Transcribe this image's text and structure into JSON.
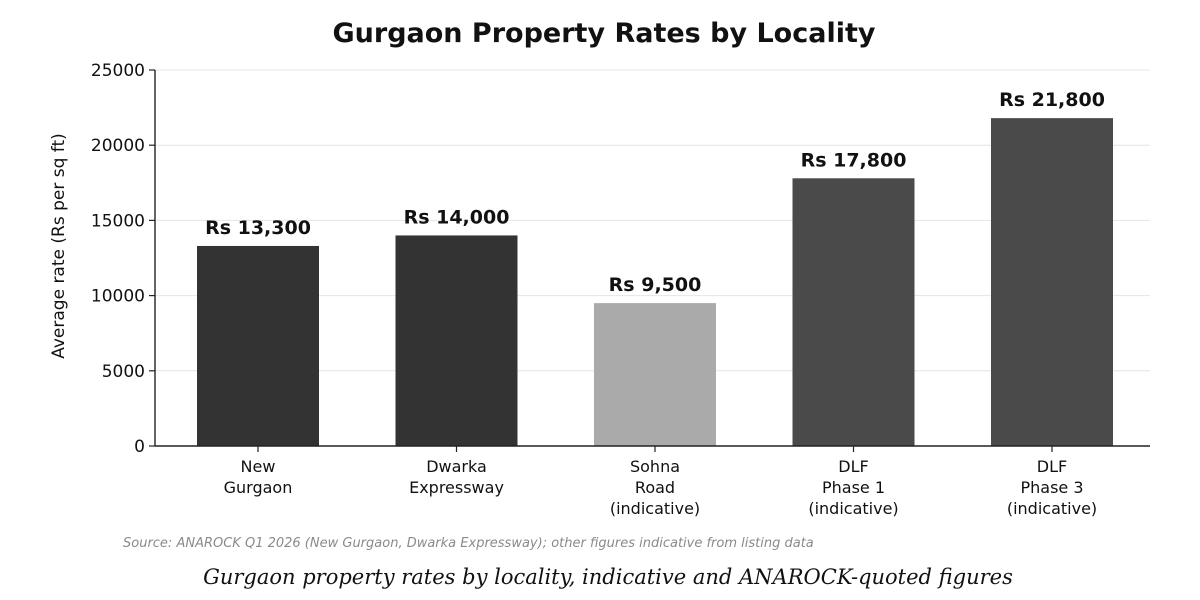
{
  "chart_data": {
    "type": "bar",
    "title": "Gurgaon Property Rates by Locality",
    "xlabel": "",
    "ylabel": "Average rate (Rs per sq ft)",
    "ylim": [
      0,
      25000
    ],
    "yticks": [
      0,
      5000,
      10000,
      15000,
      20000,
      25000
    ],
    "grid": true,
    "categories": [
      [
        "New",
        "Gurgaon"
      ],
      [
        "Dwarka",
        "Expressway"
      ],
      [
        "Sohna",
        "Road",
        "(indicative)"
      ],
      [
        "DLF",
        "Phase 1",
        "(indicative)"
      ],
      [
        "DLF",
        "Phase 3",
        "(indicative)"
      ]
    ],
    "values": [
      13300,
      14000,
      9500,
      17800,
      21800
    ],
    "data_labels": [
      "Rs 13,300",
      "Rs 14,000",
      "Rs 9,500",
      "Rs 17,800",
      "Rs 21,800"
    ],
    "colors": [
      "#333333",
      "#333333",
      "#aaaaaa",
      "#4a4a4a",
      "#4a4a4a"
    ],
    "source": "Source: ANAROCK Q1 2026 (New Gurgaon, Dwarka Expressway); other figures indicative from listing data",
    "caption": "Gurgaon property rates by locality, indicative and ANAROCK-quoted figures"
  }
}
